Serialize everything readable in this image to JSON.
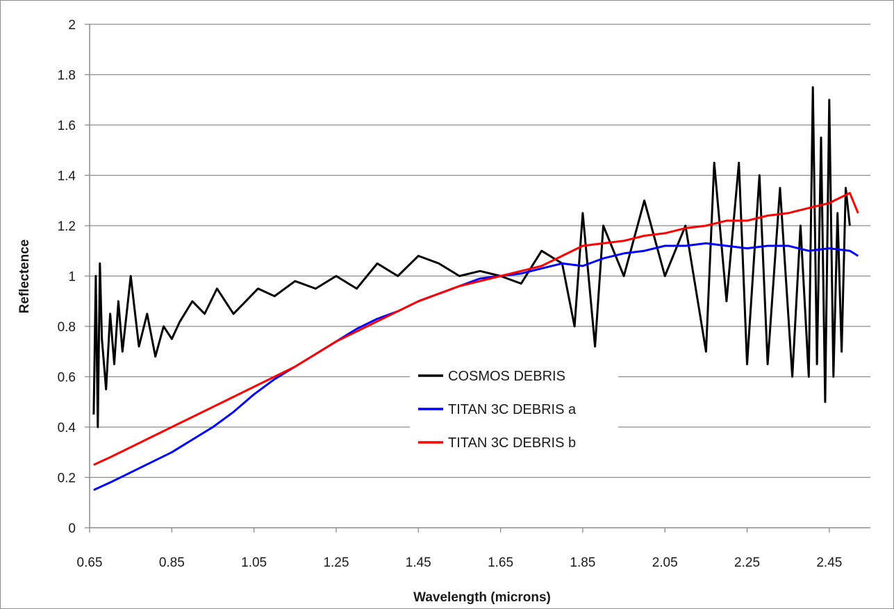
{
  "chart_data": {
    "type": "line",
    "xlabel": "Wavelength (microns)",
    "ylabel": "Reflectence",
    "xlim": [
      0.65,
      2.55
    ],
    "ylim": [
      0,
      2
    ],
    "x_ticks": [
      "0.65",
      "0.85",
      "1.05",
      "1.25",
      "1.45",
      "1.65",
      "1.85",
      "2.05",
      "2.25",
      "2.45"
    ],
    "y_ticks": [
      "0",
      "0.2",
      "0.4",
      "0.6",
      "0.8",
      "1",
      "1.2",
      "1.4",
      "1.6",
      "1.8",
      "2"
    ],
    "grid": "horizontal",
    "legend_position": "center",
    "series": [
      {
        "name": "COSMOS DEBRIS",
        "color": "#000000",
        "x": [
          0.66,
          0.665,
          0.67,
          0.675,
          0.68,
          0.69,
          0.7,
          0.71,
          0.72,
          0.73,
          0.75,
          0.77,
          0.79,
          0.81,
          0.83,
          0.85,
          0.87,
          0.9,
          0.93,
          0.96,
          1.0,
          1.03,
          1.06,
          1.1,
          1.15,
          1.2,
          1.25,
          1.3,
          1.35,
          1.4,
          1.45,
          1.5,
          1.55,
          1.6,
          1.65,
          1.7,
          1.75,
          1.8,
          1.83,
          1.85,
          1.88,
          1.9,
          1.95,
          2.0,
          2.05,
          2.1,
          2.15,
          2.17,
          2.2,
          2.23,
          2.25,
          2.28,
          2.3,
          2.33,
          2.36,
          2.38,
          2.4,
          2.41,
          2.42,
          2.43,
          2.44,
          2.45,
          2.46,
          2.47,
          2.48,
          2.49,
          2.5
        ],
        "y": [
          0.45,
          1.0,
          0.4,
          1.05,
          0.75,
          0.55,
          0.85,
          0.65,
          0.9,
          0.7,
          1.0,
          0.72,
          0.85,
          0.68,
          0.8,
          0.75,
          0.82,
          0.9,
          0.85,
          0.95,
          0.85,
          0.9,
          0.95,
          0.92,
          0.98,
          0.95,
          1.0,
          0.95,
          1.05,
          1.0,
          1.08,
          1.05,
          1.0,
          1.02,
          1.0,
          0.97,
          1.1,
          1.05,
          0.8,
          1.25,
          0.72,
          1.2,
          1.0,
          1.3,
          1.0,
          1.2,
          0.7,
          1.45,
          0.9,
          1.45,
          0.65,
          1.4,
          0.65,
          1.35,
          0.6,
          1.2,
          0.6,
          1.75,
          0.65,
          1.55,
          0.5,
          1.7,
          0.6,
          1.25,
          0.7,
          1.35,
          1.2
        ]
      },
      {
        "name": "TITAN 3C DEBRIS a",
        "color": "#0000ff",
        "x": [
          0.66,
          0.7,
          0.75,
          0.8,
          0.85,
          0.9,
          0.95,
          1.0,
          1.05,
          1.1,
          1.15,
          1.2,
          1.25,
          1.3,
          1.35,
          1.4,
          1.45,
          1.5,
          1.55,
          1.6,
          1.65,
          1.7,
          1.75,
          1.8,
          1.85,
          1.9,
          1.95,
          2.0,
          2.05,
          2.1,
          2.15,
          2.2,
          2.25,
          2.3,
          2.35,
          2.4,
          2.45,
          2.5,
          2.52
        ],
        "y": [
          0.15,
          0.18,
          0.22,
          0.26,
          0.3,
          0.35,
          0.4,
          0.46,
          0.53,
          0.59,
          0.64,
          0.69,
          0.74,
          0.79,
          0.83,
          0.86,
          0.9,
          0.93,
          0.96,
          0.99,
          1.0,
          1.01,
          1.03,
          1.05,
          1.04,
          1.07,
          1.09,
          1.1,
          1.12,
          1.12,
          1.13,
          1.12,
          1.11,
          1.12,
          1.12,
          1.1,
          1.11,
          1.1,
          1.08
        ]
      },
      {
        "name": "TITAN 3C DEBRIS b",
        "color": "#ff0000",
        "x": [
          0.66,
          0.7,
          0.75,
          0.8,
          0.85,
          0.9,
          0.95,
          1.0,
          1.05,
          1.1,
          1.15,
          1.2,
          1.25,
          1.3,
          1.35,
          1.4,
          1.45,
          1.5,
          1.55,
          1.6,
          1.65,
          1.7,
          1.75,
          1.8,
          1.85,
          1.9,
          1.95,
          2.0,
          2.05,
          2.1,
          2.15,
          2.2,
          2.25,
          2.3,
          2.35,
          2.4,
          2.45,
          2.5,
          2.52
        ],
        "y": [
          0.25,
          0.28,
          0.32,
          0.36,
          0.4,
          0.44,
          0.48,
          0.52,
          0.56,
          0.6,
          0.64,
          0.69,
          0.74,
          0.78,
          0.82,
          0.86,
          0.9,
          0.93,
          0.96,
          0.98,
          1.0,
          1.02,
          1.04,
          1.08,
          1.12,
          1.13,
          1.14,
          1.16,
          1.17,
          1.19,
          1.2,
          1.22,
          1.22,
          1.24,
          1.25,
          1.27,
          1.29,
          1.33,
          1.25
        ]
      }
    ]
  }
}
